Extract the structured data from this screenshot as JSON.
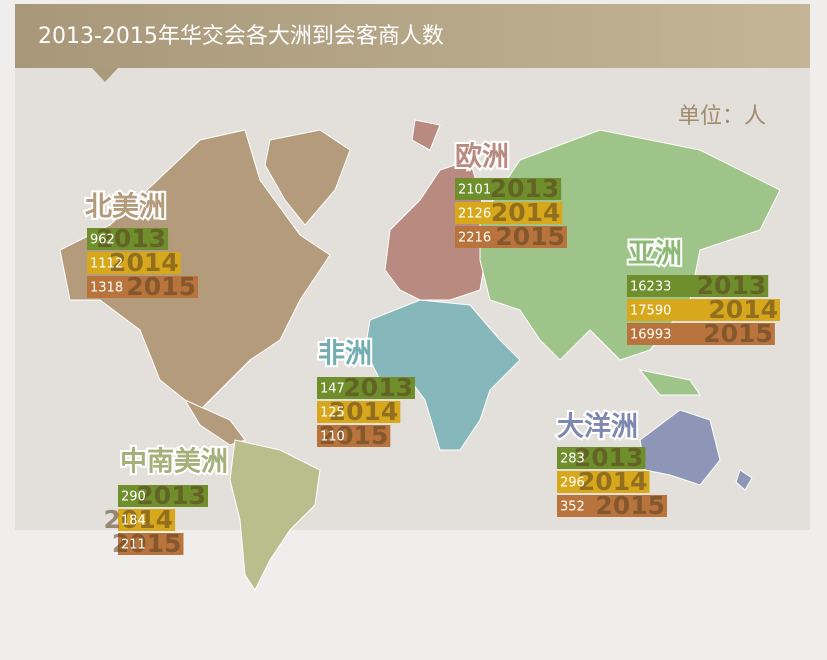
{
  "chart_data": {
    "type": "bar",
    "title": "2013-2015年华交会各大洲到会客商人数",
    "unit": "单位：人",
    "categories": [
      "北美洲",
      "欧洲",
      "亚洲",
      "非洲",
      "中南美洲",
      "大洋洲"
    ],
    "series": [
      {
        "name": "2013",
        "color": "#6f8f2c",
        "values": [
          962,
          2101,
          16233,
          147,
          290,
          283
        ]
      },
      {
        "name": "2014",
        "color": "#d8a81c",
        "values": [
          1112,
          2126,
          17590,
          125,
          184,
          296
        ]
      },
      {
        "name": "2015",
        "color": "#b8743c",
        "values": [
          1318,
          2216,
          16993,
          110,
          211,
          352
        ]
      }
    ]
  }
}
